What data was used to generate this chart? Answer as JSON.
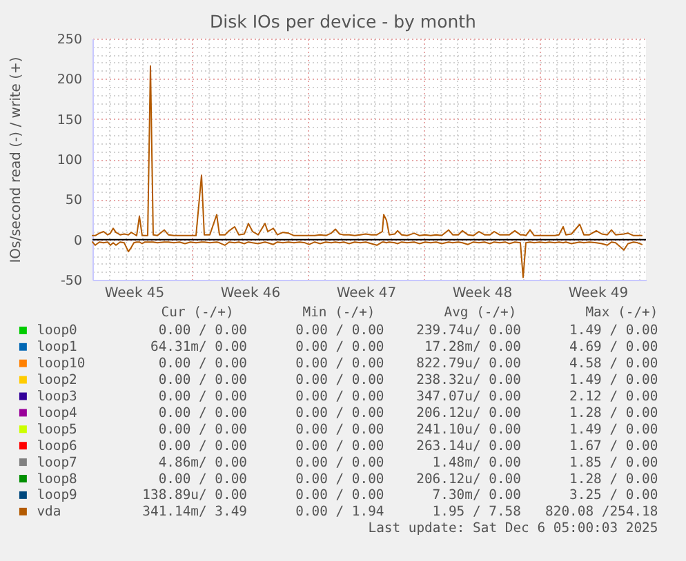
{
  "chart_data": {
    "type": "line",
    "title": "Disk IOs per device - by month",
    "ylabel": "IOs/second read (-) / write (+)",
    "x": [
      "2025-11-03T00:00",
      "2025-11-03T04:00",
      "2025-11-03T10:00",
      "2025-11-03T16:00",
      "2025-11-03T22:00",
      "2025-11-04T02:00",
      "2025-11-04T06:00",
      "2025-11-04T10:00",
      "2025-11-04T16:00",
      "2025-11-04T22:00",
      "2025-11-05T04:00",
      "2025-11-05T08:00",
      "2025-11-05T12:00",
      "2025-11-05T16:00",
      "2025-11-05T20:00",
      "2025-11-06T00:00",
      "2025-11-06T04:00",
      "2025-11-06T08:00",
      "2025-11-06T12:00",
      "2025-11-06T16:00",
      "2025-11-06T22:00",
      "2025-11-07T08:00",
      "2025-11-07T14:00",
      "2025-11-07T22:00",
      "2025-11-08T06:00",
      "2025-11-08T14:00",
      "2025-11-08T22:00",
      "2025-11-09T06:00",
      "2025-11-09T14:00",
      "2025-11-09T18:00",
      "2025-11-10T02:00",
      "2025-11-10T12:00",
      "2025-11-10T16:00",
      "2025-11-11T00:00",
      "2025-11-11T06:00",
      "2025-11-11T14:00",
      "2025-11-11T20:00",
      "2025-11-12T04:00",
      "2025-11-12T10:00",
      "2025-11-12T16:00",
      "2025-11-13T00:00",
      "2025-11-13T10:00",
      "2025-11-13T14:00",
      "2025-11-13T22:00",
      "2025-11-14T04:00",
      "2025-11-14T12:00",
      "2025-11-14T20:00",
      "2025-11-15T04:00",
      "2025-11-15T12:00",
      "2025-11-15T20:00",
      "2025-11-16T02:00",
      "2025-11-16T10:00",
      "2025-11-16T18:00",
      "2025-11-17T02:00",
      "2025-11-17T10:00",
      "2025-11-17T16:00",
      "2025-11-17T22:00",
      "2025-11-18T04:00",
      "2025-11-18T12:00",
      "2025-11-18T20:00",
      "2025-11-19T04:00",
      "2025-11-19T12:00",
      "2025-11-19T20:00",
      "2025-11-20T04:00",
      "2025-11-20T12:00",
      "2025-11-20T14:00",
      "2025-11-20T18:00",
      "2025-11-20T22:00",
      "2025-11-21T06:00",
      "2025-11-21T10:00",
      "2025-11-21T16:00",
      "2025-11-22T00:00",
      "2025-11-22T10:00",
      "2025-11-22T18:00",
      "2025-11-23T02:00",
      "2025-11-23T10:00",
      "2025-11-23T18:00",
      "2025-11-24T02:00",
      "2025-11-24T12:00",
      "2025-11-24T18:00",
      "2025-11-25T02:00",
      "2025-11-25T08:00",
      "2025-11-25T16:00",
      "2025-11-26T00:00",
      "2025-11-26T08:00",
      "2025-11-26T16:00",
      "2025-11-27T00:00",
      "2025-11-27T06:00",
      "2025-11-27T14:00",
      "2025-11-27T22:00",
      "2025-11-28T04:00",
      "2025-11-28T12:00",
      "2025-11-28T20:00",
      "2025-11-29T00:00",
      "2025-11-29T04:00",
      "2025-11-29T10:00",
      "2025-11-29T16:00",
      "2025-11-30T00:00",
      "2025-11-30T08:00",
      "2025-11-30T14:00",
      "2025-11-30T22:00",
      "2025-12-01T04:00",
      "2025-12-01T10:00",
      "2025-12-01T14:00",
      "2025-12-01T22:00",
      "2025-12-02T10:00",
      "2025-12-02T16:00",
      "2025-12-03T00:00",
      "2025-12-03T10:00",
      "2025-12-03T18:00",
      "2025-12-04T02:00",
      "2025-12-04T08:00",
      "2025-12-04T14:00",
      "2025-12-05T02:00",
      "2025-12-05T08:00",
      "2025-12-05T16:00",
      "2025-12-05T22:00",
      "2025-12-06T04:00"
    ],
    "series": [
      {
        "name": "loop0",
        "color": "#00cc00",
        "values": [
          null,
          null,
          null,
          null,
          null,
          null,
          null,
          null,
          null,
          null,
          null,
          null,
          null,
          null,
          null,
          null,
          null,
          null,
          null,
          null,
          null,
          null,
          null,
          null,
          null,
          null,
          null,
          null,
          null,
          null,
          null,
          null,
          null,
          null,
          null,
          null,
          null,
          null,
          null,
          null,
          null,
          null,
          null,
          null,
          null,
          null,
          null,
          null,
          null,
          null,
          null,
          null,
          null,
          null,
          null,
          null,
          null,
          null,
          null,
          null,
          null,
          null,
          null,
          null,
          null,
          null,
          null,
          null,
          null,
          null,
          null,
          null,
          null,
          null,
          null,
          null,
          null,
          null,
          null,
          null,
          null,
          null,
          null,
          null,
          null,
          null,
          null,
          null,
          null,
          null,
          null,
          null,
          null,
          null,
          null,
          null,
          null,
          null,
          null,
          null,
          null,
          null,
          null,
          null,
          null,
          null,
          null,
          null,
          null,
          null,
          null,
          null,
          null,
          null,
          null,
          null,
          null,
          null
        ]
      },
      {
        "name": "loop1",
        "color": "#0066b3",
        "values": [
          null,
          null,
          null,
          null,
          null,
          null,
          null,
          null,
          null,
          null,
          null,
          null,
          null,
          null,
          null,
          null,
          null,
          null,
          null,
          null,
          null,
          null,
          null,
          null,
          null,
          null,
          null,
          null,
          null,
          null,
          null,
          null,
          null,
          null,
          null,
          null,
          null,
          null,
          null,
          null,
          null,
          null,
          null,
          null,
          null,
          null,
          null,
          null,
          null,
          null,
          null,
          null,
          null,
          null,
          null,
          null,
          null,
          null,
          null,
          null,
          null,
          null,
          null,
          null,
          null,
          null,
          null,
          null,
          null,
          null,
          null,
          null,
          null,
          null,
          null,
          null,
          null,
          null,
          null,
          null,
          null,
          null,
          null,
          null,
          null,
          null,
          null,
          null,
          null,
          null,
          null,
          null,
          null,
          null,
          null,
          null,
          null,
          null,
          null,
          null,
          null,
          null,
          null,
          null,
          null,
          null,
          null,
          null,
          null,
          null,
          null,
          null,
          null,
          null,
          null,
          null,
          null,
          null
        ]
      },
      {
        "name": "loop10",
        "color": "#ff8000",
        "values": [
          null,
          null,
          null,
          null,
          null,
          null,
          null,
          null,
          null,
          null,
          null,
          null,
          null,
          null,
          null,
          null,
          null,
          null,
          null,
          null,
          null,
          null,
          null,
          null,
          null,
          null,
          null,
          null,
          null,
          null,
          null,
          null,
          null,
          null,
          null,
          null,
          null,
          null,
          null,
          null,
          null,
          null,
          null,
          null,
          null,
          null,
          null,
          null,
          null,
          null,
          null,
          null,
          null,
          null,
          null,
          null,
          null,
          null,
          null,
          null,
          null,
          null,
          null,
          null,
          null,
          null,
          null,
          null,
          null,
          null,
          null,
          null,
          null,
          null,
          null,
          null,
          null,
          null,
          null,
          null,
          null,
          null,
          null,
          null,
          null,
          null,
          null,
          null,
          null,
          null,
          null,
          null,
          null,
          null,
          null,
          null,
          null,
          null,
          null,
          null,
          null,
          null,
          null,
          null,
          null,
          null,
          null,
          null,
          null,
          null,
          null,
          null,
          null,
          null,
          null,
          null,
          null,
          null
        ]
      },
      {
        "name": "loop2",
        "color": "#ffcc00",
        "values": [
          null,
          null,
          null,
          null,
          null,
          null,
          null,
          null,
          null,
          null,
          null,
          null,
          null,
          null,
          null,
          null,
          null,
          null,
          null,
          null,
          null,
          null,
          null,
          null,
          null,
          null,
          null,
          null,
          null,
          null,
          null,
          null,
          null,
          null,
          null,
          null,
          null,
          null,
          null,
          null,
          null,
          null,
          null,
          null,
          null,
          null,
          null,
          null,
          null,
          null,
          null,
          null,
          null,
          null,
          null,
          null,
          null,
          null,
          null,
          null,
          null,
          null,
          null,
          null,
          null,
          null,
          null,
          null,
          null,
          null,
          null,
          null,
          null,
          null,
          null,
          null,
          null,
          null,
          null,
          null,
          null,
          null,
          null,
          null,
          null,
          null,
          null,
          null,
          null,
          null,
          null,
          null,
          null,
          null,
          null,
          null,
          null,
          null,
          null,
          null,
          null,
          null,
          null,
          null,
          null,
          null,
          null,
          null,
          null,
          null,
          null,
          null,
          null,
          null,
          null,
          null,
          null,
          null
        ]
      },
      {
        "name": "loop3",
        "color": "#330099",
        "values": [
          null,
          null,
          null,
          null,
          null,
          null,
          null,
          null,
          null,
          null,
          null,
          null,
          null,
          null,
          null,
          null,
          null,
          null,
          null,
          null,
          null,
          null,
          null,
          null,
          null,
          null,
          null,
          null,
          null,
          null,
          null,
          null,
          null,
          null,
          null,
          null,
          null,
          null,
          null,
          null,
          null,
          null,
          null,
          null,
          null,
          null,
          null,
          null,
          null,
          null,
          null,
          null,
          null,
          null,
          null,
          null,
          null,
          null,
          null,
          null,
          null,
          null,
          null,
          null,
          null,
          null,
          null,
          null,
          null,
          null,
          null,
          null,
          null,
          null,
          null,
          null,
          null,
          null,
          null,
          null,
          null,
          null,
          null,
          null,
          null,
          null,
          null,
          null,
          null,
          null,
          null,
          null,
          null,
          null,
          null,
          null,
          null,
          null,
          null,
          null,
          null,
          null,
          null,
          null,
          null,
          null,
          null,
          null,
          null,
          null,
          null,
          null,
          null,
          null,
          null,
          null,
          null,
          null
        ]
      },
      {
        "name": "loop4",
        "color": "#990099",
        "values": [
          null,
          null,
          null,
          null,
          null,
          null,
          null,
          null,
          null,
          null,
          null,
          null,
          null,
          null,
          null,
          null,
          null,
          null,
          null,
          null,
          null,
          null,
          null,
          null,
          null,
          null,
          null,
          null,
          null,
          null,
          null,
          null,
          null,
          null,
          null,
          null,
          null,
          null,
          null,
          null,
          null,
          null,
          null,
          null,
          null,
          null,
          null,
          null,
          null,
          null,
          null,
          null,
          null,
          null,
          null,
          null,
          null,
          null,
          null,
          null,
          null,
          null,
          null,
          null,
          null,
          null,
          null,
          null,
          null,
          null,
          null,
          null,
          null,
          null,
          null,
          null,
          null,
          null,
          null,
          null,
          null,
          null,
          null,
          null,
          null,
          null,
          null,
          null,
          null,
          null,
          null,
          null,
          null,
          null,
          null,
          null,
          null,
          null,
          null,
          null,
          null,
          null,
          null,
          null,
          null,
          null,
          null,
          null,
          null,
          null,
          null,
          null,
          null,
          null,
          null,
          null,
          null,
          null
        ]
      },
      {
        "name": "loop5",
        "color": "#ccff00",
        "values": [
          null,
          null,
          null,
          null,
          null,
          null,
          null,
          null,
          null,
          null,
          null,
          null,
          null,
          null,
          null,
          null,
          null,
          null,
          null,
          null,
          null,
          null,
          null,
          null,
          null,
          null,
          null,
          null,
          null,
          null,
          null,
          null,
          null,
          null,
          null,
          null,
          null,
          null,
          null,
          null,
          null,
          null,
          null,
          null,
          null,
          null,
          null,
          null,
          null,
          null,
          null,
          null,
          null,
          null,
          null,
          null,
          null,
          null,
          null,
          null,
          null,
          null,
          null,
          null,
          null,
          null,
          null,
          null,
          null,
          null,
          null,
          null,
          null,
          null,
          null,
          null,
          null,
          null,
          null,
          null,
          null,
          null,
          null,
          null,
          null,
          null,
          null,
          null,
          null,
          null,
          null,
          null,
          null,
          null,
          null,
          null,
          null,
          null,
          null,
          null,
          null,
          null,
          null,
          null,
          null,
          null,
          null,
          null,
          null,
          null,
          null,
          null,
          null,
          null,
          null,
          null,
          null,
          null
        ]
      },
      {
        "name": "loop6",
        "color": "#ff0000",
        "values": [
          null,
          null,
          null,
          null,
          null,
          null,
          null,
          null,
          null,
          null,
          null,
          null,
          null,
          null,
          null,
          null,
          null,
          null,
          null,
          null,
          null,
          null,
          null,
          null,
          null,
          null,
          null,
          null,
          null,
          null,
          null,
          null,
          null,
          null,
          null,
          null,
          null,
          null,
          null,
          null,
          null,
          null,
          null,
          null,
          null,
          null,
          null,
          null,
          null,
          null,
          null,
          null,
          null,
          null,
          null,
          null,
          null,
          null,
          null,
          null,
          null,
          null,
          null,
          null,
          null,
          null,
          null,
          null,
          null,
          null,
          null,
          null,
          null,
          null,
          null,
          null,
          null,
          null,
          null,
          null,
          null,
          null,
          null,
          null,
          null,
          null,
          null,
          null,
          null,
          null,
          null,
          null,
          null,
          null,
          null,
          null,
          null,
          null,
          null,
          null,
          null,
          null,
          null,
          null,
          null,
          null,
          null,
          null,
          null,
          null,
          null,
          null,
          null,
          null,
          null,
          null,
          null,
          null
        ]
      },
      {
        "name": "loop7",
        "color": "#808080",
        "values": [
          null,
          null,
          null,
          null,
          null,
          null,
          null,
          null,
          null,
          null,
          null,
          null,
          null,
          null,
          null,
          null,
          null,
          null,
          null,
          null,
          null,
          null,
          null,
          null,
          null,
          null,
          null,
          null,
          null,
          null,
          null,
          null,
          null,
          null,
          null,
          null,
          null,
          null,
          null,
          null,
          null,
          null,
          null,
          null,
          null,
          null,
          null,
          null,
          null,
          null,
          null,
          null,
          null,
          null,
          null,
          null,
          null,
          null,
          null,
          null,
          null,
          null,
          null,
          null,
          null,
          null,
          null,
          null,
          null,
          null,
          null,
          null,
          null,
          null,
          null,
          null,
          null,
          null,
          null,
          null,
          null,
          null,
          null,
          null,
          null,
          null,
          null,
          null,
          null,
          null,
          null,
          null,
          null,
          null,
          null,
          null,
          null,
          null,
          null,
          null,
          null,
          null,
          null,
          null,
          null,
          null,
          null,
          null,
          null,
          null,
          null,
          null,
          null,
          null,
          null,
          null,
          null,
          null
        ]
      },
      {
        "name": "loop8",
        "color": "#008f00",
        "values": [
          null,
          null,
          null,
          null,
          null,
          null,
          null,
          null,
          null,
          null,
          null,
          null,
          null,
          null,
          null,
          null,
          null,
          null,
          null,
          null,
          null,
          null,
          null,
          null,
          null,
          null,
          null,
          null,
          null,
          null,
          null,
          null,
          null,
          null,
          null,
          null,
          null,
          null,
          null,
          null,
          null,
          null,
          null,
          null,
          null,
          null,
          null,
          null,
          null,
          null,
          null,
          null,
          null,
          null,
          null,
          null,
          null,
          null,
          null,
          null,
          null,
          null,
          null,
          null,
          null,
          null,
          null,
          null,
          null,
          null,
          null,
          null,
          null,
          null,
          null,
          null,
          null,
          null,
          null,
          null,
          null,
          null,
          null,
          null,
          null,
          null,
          null,
          null,
          null,
          null,
          null,
          null,
          null,
          null,
          null,
          null,
          null,
          null,
          null,
          null,
          null,
          null,
          null,
          null,
          null,
          null,
          null,
          null,
          null,
          null,
          null,
          null,
          null,
          null,
          null,
          null,
          null,
          null
        ]
      },
      {
        "name": "loop9",
        "color": "#00487d",
        "values": [
          null,
          null,
          null,
          null,
          null,
          null,
          null,
          null,
          null,
          null,
          null,
          null,
          null,
          null,
          null,
          null,
          null,
          null,
          null,
          null,
          null,
          null,
          null,
          null,
          null,
          null,
          null,
          null,
          null,
          null,
          null,
          null,
          null,
          null,
          null,
          null,
          null,
          null,
          null,
          null,
          null,
          null,
          null,
          null,
          null,
          null,
          null,
          null,
          null,
          null,
          null,
          null,
          null,
          null,
          null,
          null,
          null,
          null,
          null,
          null,
          null,
          null,
          null,
          null,
          null,
          null,
          null,
          null,
          null,
          null,
          null,
          null,
          null,
          null,
          null,
          null,
          null,
          null,
          null,
          null,
          null,
          null,
          null,
          null,
          null,
          null,
          null,
          null,
          null,
          null,
          null,
          null,
          null,
          null,
          null,
          null,
          null,
          null,
          null,
          null,
          null,
          null,
          null,
          null,
          null,
          null,
          null,
          null,
          null,
          null,
          null,
          null,
          null,
          null,
          null,
          null,
          null,
          null
        ]
      },
      {
        "name": "vda",
        "color": "#b35a00",
        "values": [
          5,
          5,
          8,
          10,
          6,
          8,
          14,
          9,
          6,
          7,
          6,
          9,
          7,
          5,
          29,
          5,
          5,
          5,
          216,
          6,
          5,
          12,
          6,
          5,
          5,
          5,
          5,
          5,
          80,
          6,
          6,
          31,
          6,
          6,
          11,
          16,
          6,
          7,
          20,
          10,
          6,
          20,
          10,
          14,
          6,
          9,
          8,
          5,
          5,
          5,
          5,
          5,
          6,
          5,
          8,
          13,
          7,
          6,
          6,
          5,
          6,
          7,
          6,
          6,
          10,
          31,
          24,
          6,
          7,
          11,
          6,
          5,
          8,
          5,
          6,
          5,
          6,
          5,
          12,
          6,
          6,
          11,
          6,
          5,
          10,
          6,
          6,
          10,
          6,
          6,
          6,
          11,
          6,
          6,
          5,
          12,
          5,
          5,
          5,
          5,
          5,
          6,
          16,
          6,
          7,
          19,
          6,
          6,
          11,
          7,
          6,
          12,
          6,
          7,
          8,
          5,
          5,
          5
        ]
      },
      {
        "color": "#b35a00",
        "values": [
          -3,
          -7,
          -3,
          -4,
          -3,
          -7,
          -4,
          -7,
          -3,
          -4,
          -15,
          -10,
          -4,
          -3,
          -3,
          -5,
          -3,
          -3,
          -3,
          -3,
          -4,
          -3,
          -3,
          -4,
          -3,
          -5,
          -3,
          -4,
          -3,
          -3,
          -4,
          -3,
          -4,
          -7,
          -3,
          -4,
          -3,
          -5,
          -3,
          -4,
          -5,
          -3,
          -4,
          -6,
          -3,
          -4,
          -3,
          -4,
          -3,
          -4,
          -6,
          -3,
          -5,
          -3,
          -4,
          -3,
          -4,
          -3,
          -5,
          -3,
          -4,
          -3,
          -5,
          -7,
          -3,
          -3,
          -4,
          -3,
          -4,
          -5,
          -3,
          -4,
          -3,
          -5,
          -3,
          -4,
          -3,
          -5,
          -3,
          -4,
          -3,
          -4,
          -6,
          -3,
          -4,
          -3,
          -5,
          -3,
          -4,
          -3,
          -5,
          -3,
          -4,
          -47,
          -4,
          -3,
          -4,
          -3,
          -4,
          -3,
          -4,
          -3,
          -4,
          -3,
          -5,
          -3,
          -4,
          -3,
          -4,
          -5,
          -7,
          -3,
          -4,
          -13,
          -5,
          -3,
          -4,
          -6
        ]
      }
    ],
    "xlim": [
      "2025-11-03T00:00",
      "2025-12-06T10:00"
    ],
    "xticks": [
      {
        "value": "2025-11-03",
        "label": null
      },
      {
        "value": "2025-11-04",
        "label": null
      },
      {
        "value": "2025-11-05",
        "label": null
      },
      {
        "value": "2025-11-06",
        "label": null
      },
      {
        "value": "2025-11-07",
        "label": null
      },
      {
        "value": "2025-11-08",
        "label": null
      },
      {
        "value": "2025-11-09",
        "label": null
      },
      {
        "value": "2025-11-10",
        "label": null
      },
      {
        "value": "2025-11-11",
        "label": null
      },
      {
        "value": "2025-11-12",
        "label": null
      },
      {
        "value": "2025-11-13",
        "label": null
      },
      {
        "value": "2025-11-14",
        "label": null
      },
      {
        "value": "2025-11-15",
        "label": null
      },
      {
        "value": "2025-11-16",
        "label": null
      },
      {
        "value": "2025-11-17",
        "label": null
      },
      {
        "value": "2025-11-18",
        "label": null
      },
      {
        "value": "2025-11-19",
        "label": null
      },
      {
        "value": "2025-11-20",
        "label": null
      },
      {
        "value": "2025-11-21",
        "label": null
      },
      {
        "value": "2025-11-22",
        "label": null
      },
      {
        "value": "2025-11-23",
        "label": null
      },
      {
        "value": "2025-11-24",
        "label": null
      },
      {
        "value": "2025-11-25",
        "label": null
      },
      {
        "value": "2025-11-26",
        "label": null
      },
      {
        "value": "2025-11-27",
        "label": null
      },
      {
        "value": "2025-11-28",
        "label": null
      },
      {
        "value": "2025-11-29",
        "label": null
      },
      {
        "value": "2025-11-30",
        "label": null
      },
      {
        "value": "2025-12-01",
        "label": null
      },
      {
        "value": "2025-12-02",
        "label": null
      },
      {
        "value": "2025-12-03",
        "label": null
      },
      {
        "value": "2025-12-04",
        "label": null
      },
      {
        "value": "2025-12-05",
        "label": null
      },
      {
        "value": "2025-12-06",
        "label": null
      },
      {
        "value": "2025-11-05T12:00",
        "label": "Week 45"
      },
      {
        "value": "2025-11-12T12:00",
        "label": "Week 46"
      },
      {
        "value": "2025-11-19T12:00",
        "label": "Week 47"
      },
      {
        "value": "2025-11-26T12:00",
        "label": "Week 48"
      },
      {
        "value": "2025-12-03T12:00",
        "label": "Week 49"
      }
    ],
    "ylim": [
      -50,
      250
    ],
    "yticks": [
      -50,
      {
        "value": -40,
        "label": null
      },
      {
        "value": -30,
        "label": null
      },
      {
        "value": -20,
        "label": null
      },
      {
        "value": -10,
        "label": null
      },
      0,
      {
        "value": 10,
        "label": null
      },
      {
        "value": 20,
        "label": null
      },
      {
        "value": 30,
        "label": null
      },
      {
        "value": 40,
        "label": null
      },
      50,
      {
        "value": 60,
        "label": null
      },
      {
        "value": 70,
        "label": null
      },
      {
        "value": 80,
        "label": null
      },
      {
        "value": 90,
        "label": null
      },
      100,
      {
        "value": 110,
        "label": null
      },
      {
        "value": 120,
        "label": null
      },
      {
        "value": 130,
        "label": null
      },
      {
        "value": 140,
        "label": null
      },
      150,
      {
        "value": 160,
        "label": null
      },
      {
        "value": 170,
        "label": null
      },
      {
        "value": 180,
        "label": null
      },
      {
        "value": 190,
        "label": null
      },
      200,
      {
        "value": 210,
        "label": null
      },
      {
        "value": 220,
        "label": null
      },
      {
        "value": 230,
        "label": null
      },
      {
        "value": 240,
        "label": null
      },
      250
    ],
    "ref_lines": [
      {
        "axis": "y",
        "value": 0,
        "color": "#000000"
      }
    ],
    "grid": true,
    "legend": "bottom",
    "annotations": [
      "Cur (-/+)",
      "Min (-/+)",
      "Avg (-/+)",
      "Max (-/+)",
      "0.00 / 0.00",
      "0.00 / 0.00",
      "239.74u/ 0.00",
      "1.49 / 0.00",
      "64.31m/ 0.00",
      "0.00 / 0.00",
      "17.28m/ 0.00",
      "4.69 / 0.00",
      "0.00 / 0.00",
      "0.00 / 0.00",
      "822.79u/ 0.00",
      "4.58 / 0.00",
      "0.00 / 0.00",
      "0.00 / 0.00",
      "238.32u/ 0.00",
      "1.49 / 0.00",
      "0.00 / 0.00",
      "0.00 / 0.00",
      "347.07u/ 0.00",
      "2.12 / 0.00",
      "0.00 / 0.00",
      "0.00 / 0.00",
      "206.12u/ 0.00",
      "1.28 / 0.00",
      "0.00 / 0.00",
      "0.00 / 0.00",
      "241.10u/ 0.00",
      "1.49 / 0.00",
      "0.00 / 0.00",
      "0.00 / 0.00",
      "263.14u/ 0.00",
      "1.67 / 0.00",
      "4.86m/ 0.00",
      "0.00 / 0.00",
      "1.48m/ 0.00",
      "1.85 / 0.00",
      "0.00 / 0.00",
      "0.00 / 0.00",
      "206.12u/ 0.00",
      "1.28 / 0.00",
      "138.89u/ 0.00",
      "0.00 / 0.00",
      "7.30m/ 0.00",
      "3.25 / 0.00",
      "341.14m/ 3.49",
      "0.00 / 1.94",
      "1.95 / 7.58",
      "820.08 /254.18",
      "Last update: Sat Dec 6 05:00:03 2025"
    ]
  }
}
